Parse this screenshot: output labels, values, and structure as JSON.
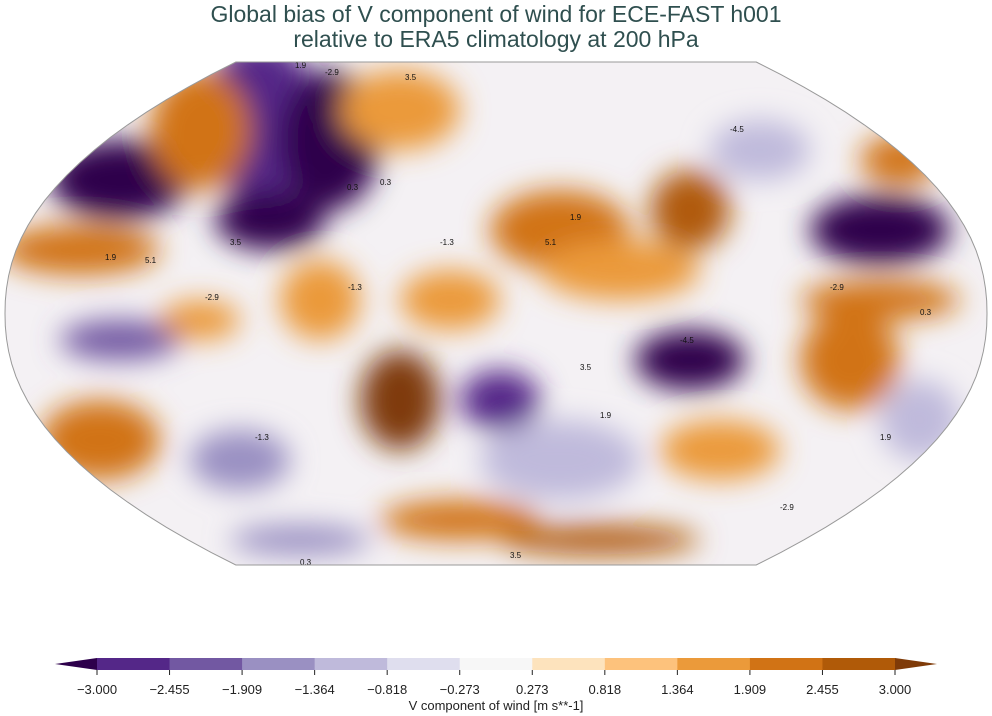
{
  "title": {
    "line1": "Global bias of V component of wind for ECE-FAST h001",
    "line2": "relative to ERA5 climatology at 200 hPa"
  },
  "colorbar": {
    "label": "V component of wind [m s**-1]",
    "ticks": [
      "−3.000",
      "−2.455",
      "−1.909",
      "−1.364",
      "−0.818",
      "−0.273",
      "0.273",
      "0.818",
      "1.364",
      "1.909",
      "2.455",
      "3.000"
    ],
    "colors": [
      "#542788",
      "#7258a2",
      "#9a90c2",
      "#bfbadb",
      "#dfdeee",
      "#f7f7f7",
      "#fde3bd",
      "#fdc27c",
      "#eb9a3a",
      "#d17315",
      "#b05a08"
    ],
    "extend_low_color": "#2d004b",
    "extend_high_color": "#7f3b08"
  },
  "map": {
    "projection": "Robinson",
    "contour_labels": [
      "1.9",
      "-2.9",
      "3.5",
      "0.3",
      "-1.3",
      "-4.5",
      "5.1",
      "1.9",
      "-2.9",
      "0.3",
      "3.5",
      "-1.3",
      "1.9",
      "-4.5",
      "3.5",
      "-2.9",
      "1.9",
      "0.3",
      "-1.3",
      "5.1",
      "3.5",
      "1.9",
      "-2.9",
      "0.3"
    ]
  }
}
